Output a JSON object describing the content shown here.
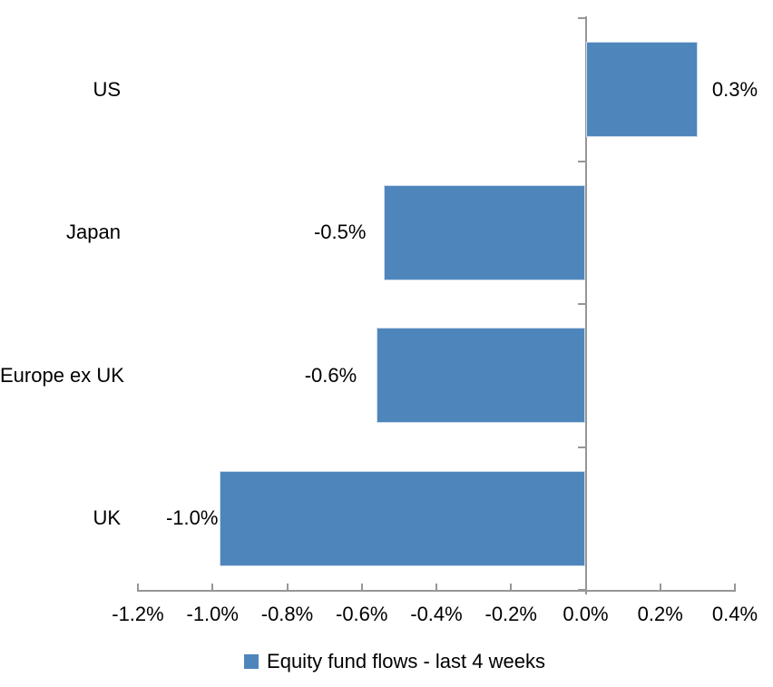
{
  "chart_data": {
    "type": "bar",
    "orientation": "horizontal",
    "title": "",
    "xlabel": "",
    "ylabel": "",
    "categories": [
      "US",
      "Japan",
      "Europe ex UK",
      "UK"
    ],
    "values": [
      0.3,
      -0.5,
      -0.6,
      -1.0
    ],
    "bar_values": [
      0.3,
      -0.54,
      -0.56,
      -0.98
    ],
    "data_labels": [
      "0.3%",
      "-0.5%",
      "-0.6%",
      "-1.0%"
    ],
    "x_axis": {
      "min": -1.2,
      "max": 0.4,
      "step": 0.2,
      "tick_labels": [
        "-1.2%",
        "-1.0%",
        "-0.8%",
        "-0.6%",
        "-0.4%",
        "-0.2%",
        "0.0%",
        "0.2%",
        "0.4%"
      ]
    },
    "legend": {
      "label": "Equity fund flows - last 4 weeks",
      "position": "bottom",
      "marker": "square"
    },
    "colors": {
      "bar": "#4E86BC",
      "bar_border": "#CDDCEE",
      "axis": "#969696",
      "text": "#000000",
      "background": "#FFFFFF"
    },
    "grid": false
  }
}
